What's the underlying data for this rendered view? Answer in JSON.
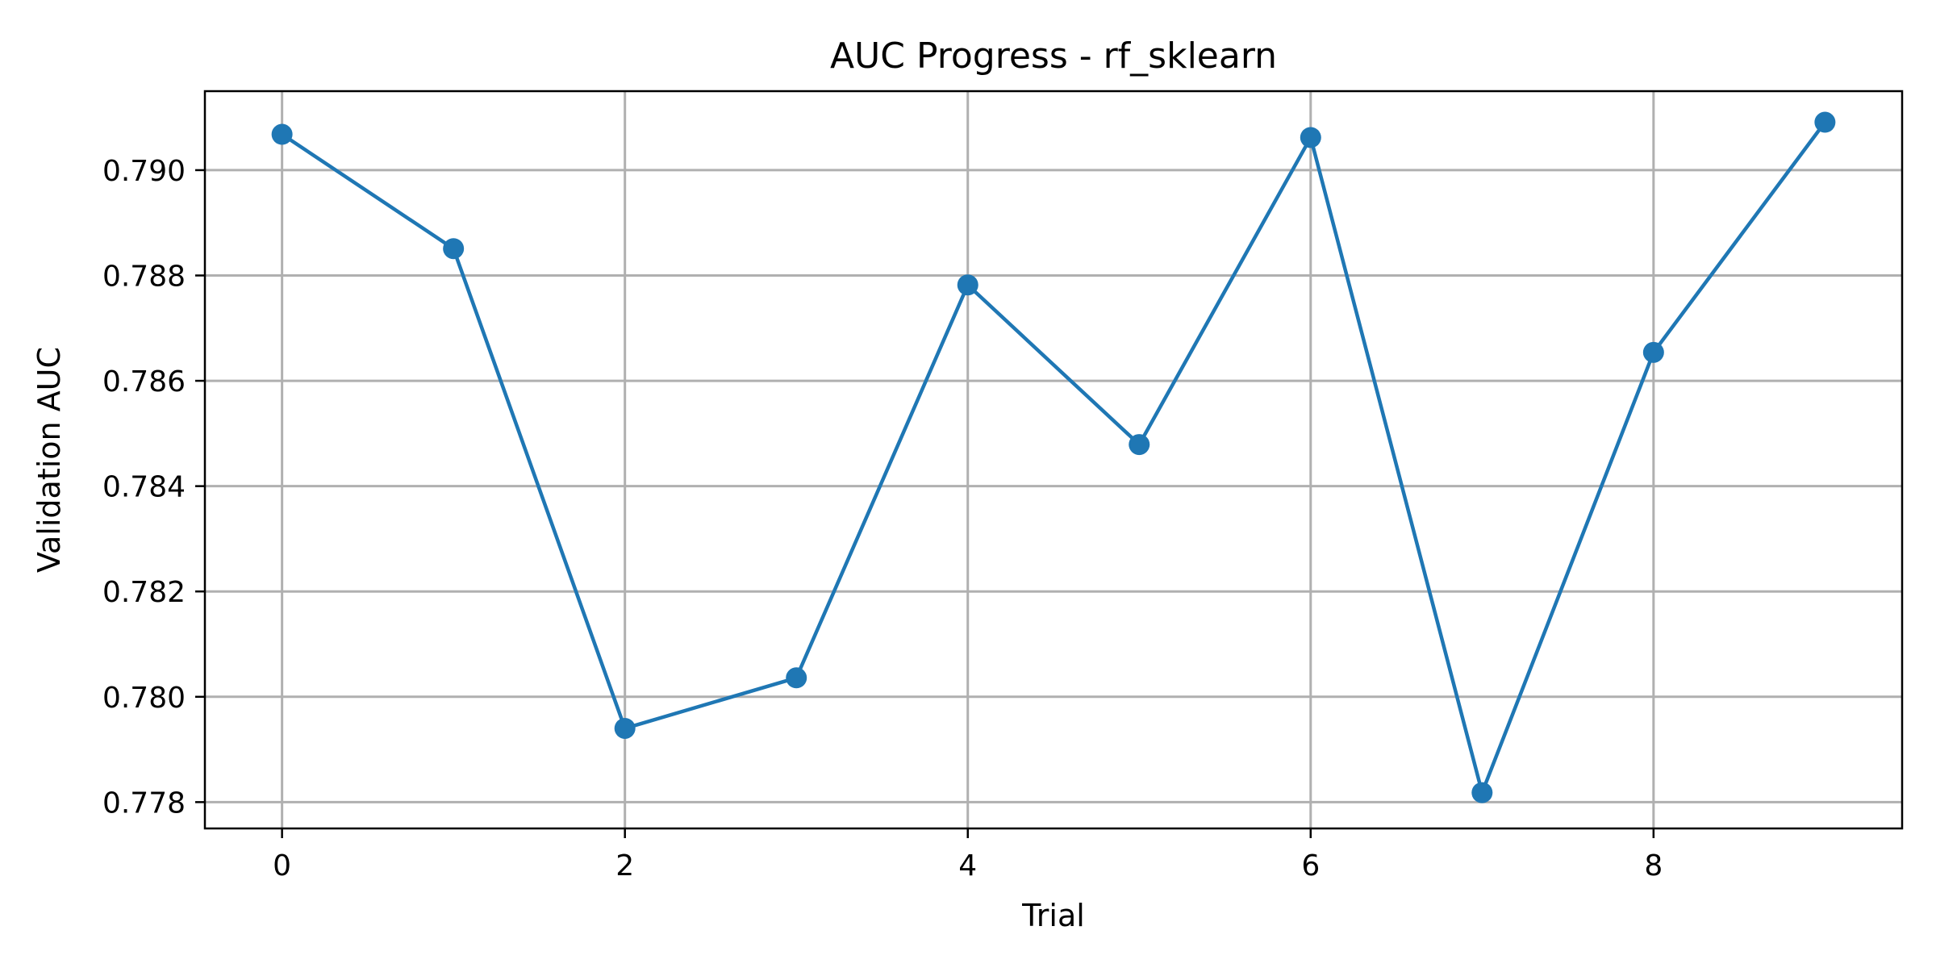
{
  "chart_data": {
    "type": "line",
    "title": "AUC Progress - rf_sklearn",
    "xlabel": "Trial",
    "ylabel": "Validation AUC",
    "x": [
      0,
      1,
      2,
      3,
      4,
      5,
      6,
      7,
      8,
      9
    ],
    "series": [
      {
        "values": [
          0.79068,
          0.78851,
          0.7794,
          0.78036,
          0.78782,
          0.78479,
          0.79062,
          0.77818,
          0.78654,
          0.79091
        ],
        "color": "#1f77b4",
        "marker": "circle"
      }
    ],
    "xlim": [
      -0.45,
      9.45
    ],
    "ylim": [
      0.7775,
      0.7915
    ],
    "xticks": [
      0,
      2,
      4,
      6,
      8
    ],
    "xtick_labels": [
      "0",
      "2",
      "4",
      "6",
      "8"
    ],
    "yticks": [
      0.778,
      0.78,
      0.782,
      0.784,
      0.786,
      0.788,
      0.79
    ],
    "ytick_labels": [
      "0.778",
      "0.780",
      "0.782",
      "0.784",
      "0.786",
      "0.788",
      "0.790"
    ],
    "grid": true,
    "legend": false
  }
}
